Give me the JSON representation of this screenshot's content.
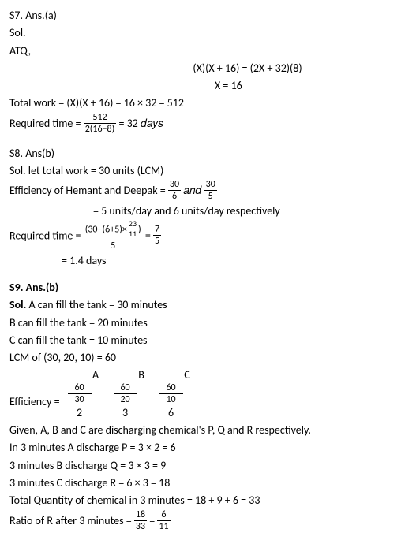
{
  "s7": {
    "title": "S7. Ans.(a)",
    "sol": "Sol.",
    "atq": "ATQ,",
    "eq1": "(X)(X + 16) = (2X + 32)(8)",
    "eq2": "X = 16",
    "totalwork_label": "Total work = ",
    "totalwork_expr": "(X)(X + 16) = 16 × 32 = 512",
    "reqtime_label": "Required time = ",
    "frac_num": "512",
    "frac_den": "2(16−8)",
    "reqtime_result": " = 32 𝑑𝑎𝑦𝑠"
  },
  "s8": {
    "title": "S8. Ans(b)",
    "sol": "Sol. let total work = 30 units (LCM)",
    "eff_label": "Efficiency of Hemant and Deepak = ",
    "frac1_num": "30",
    "frac1_den": "6",
    "and": " 𝑎𝑛𝑑 ",
    "frac2_num": "30",
    "frac2_den": "5",
    "eff_result": "= 5 units/day and 6 units/day respectively",
    "reqtime_label": "Required time = ",
    "big_num_a": "(30−(6+5)×",
    "inner_num": "23",
    "inner_den": "11",
    "big_num_b": ")",
    "big_den": "5",
    "eq": " = ",
    "res_num": "7",
    "res_den": "5",
    "final": "= 1.4 days"
  },
  "s9": {
    "title": "S9. Ans.(b)",
    "sol_label": "Sol.",
    "a_fill": " A can fill the tank = 30 minutes",
    "b_fill": "B can fill the tank = 20 minutes",
    "c_fill": "C can fill the tank = 10 minutes",
    "lcm": "LCM of (30, 20, 10) = 60",
    "headers": [
      "A",
      "B",
      "C"
    ],
    "eff_label": "Efficiency = ",
    "eff_nums": [
      "60",
      "60",
      "60"
    ],
    "eff_dens": [
      "30",
      "20",
      "10"
    ],
    "eff_vals": [
      "2",
      "3",
      "6"
    ],
    "given": "Given, A, B and C are discharging chemical's P, Q and R respectively.",
    "l1": "In 3 minutes A discharge P = 3 × 2 = 6",
    "l2": "3 minutes B discharge Q = 3 × 3 = 9",
    "l3": "3 minutes C discharge R = 6 × 3 = 18",
    "total": "Total Quantity of chemical in 3 minutes = 18 + 9 + 6 = 33",
    "ratio_label": "Ratio of R after 3 minutes = ",
    "r1_num": "18",
    "r1_den": "33",
    "eq": " = ",
    "r2_num": "6",
    "r2_den": "11"
  }
}
